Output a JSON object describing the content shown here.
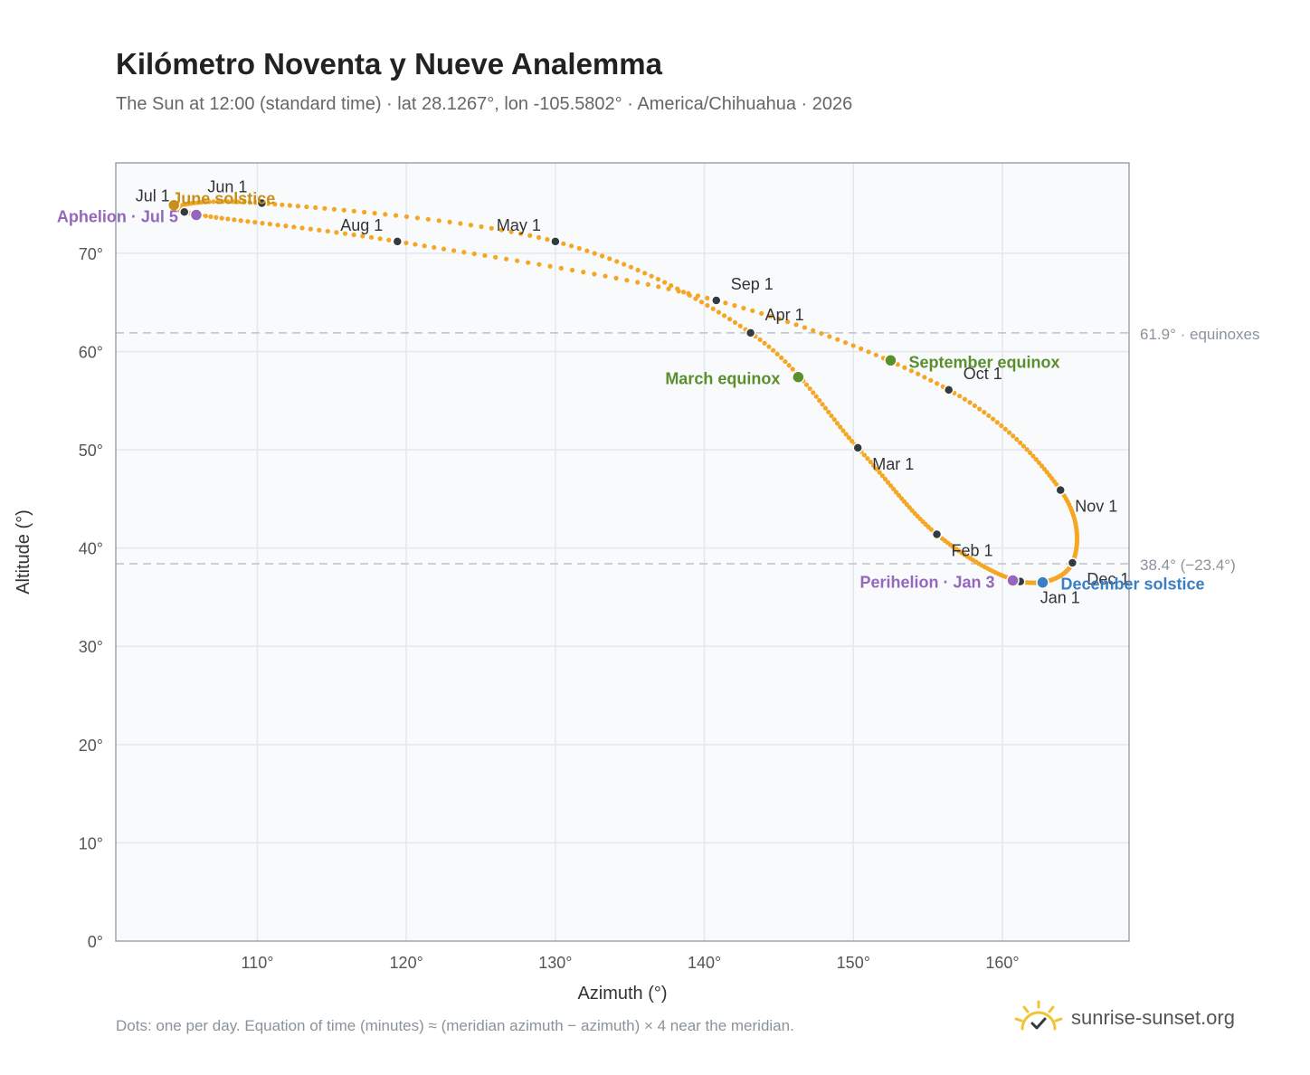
{
  "header": {
    "title": "Kilómetro Noventa y Nueve Analemma",
    "subtitle": "The Sun at 12:00 (standard time) · lat 28.1267°, lon -105.5802° · America/Chihuahua · 2026"
  },
  "footer": {
    "note": "Dots: one per day. Equation of time (minutes) ≈ (meridian azimuth − azimuth) × 4 near the meridian.",
    "brand": "sunrise-sunset.org"
  },
  "colors": {
    "path": "#f5a623",
    "month_dot": "#333a40",
    "equinox": "#5a8f2e",
    "june_solstice": "#c8901a",
    "december_solstice": "#3a7fc1",
    "apsis": "#9467bd",
    "brand_sun": "#f2c230",
    "plot_bg": "#f8fafc",
    "grid": "#e3e8ef",
    "frame": "#9aa5b4",
    "ref_line": "#b9c2cd"
  },
  "icons": {
    "brand": "sun-check-icon"
  },
  "chart_data": {
    "type": "scatter",
    "xlabel": "Azimuth (°)",
    "ylabel": "Altitude (°)",
    "xlim": [
      100.5,
      168.5
    ],
    "ylim": [
      0,
      79.2
    ],
    "x_ticks": [
      110,
      120,
      130,
      140,
      150,
      160
    ],
    "x_tick_labels": [
      "110°",
      "120°",
      "130°",
      "140°",
      "150°",
      "160°"
    ],
    "y_ticks": [
      0,
      10,
      20,
      30,
      40,
      50,
      60,
      70
    ],
    "y_tick_labels": [
      "0°",
      "10°",
      "20°",
      "30°",
      "40°",
      "50°",
      "60°",
      "70°"
    ],
    "grid": true,
    "reference_lines": [
      {
        "y": 61.9,
        "label": "61.9° · equinoxes"
      },
      {
        "y": 38.4,
        "label": "38.4° (−23.4°)"
      }
    ],
    "month_markers": [
      {
        "label": "Jan 1",
        "az": 161.2,
        "alt": 36.6
      },
      {
        "label": "Feb 1",
        "az": 155.6,
        "alt": 41.4
      },
      {
        "label": "Mar 1",
        "az": 150.3,
        "alt": 50.2
      },
      {
        "label": "Apr 1",
        "az": 143.1,
        "alt": 61.9
      },
      {
        "label": "May 1",
        "az": 130.0,
        "alt": 71.2
      },
      {
        "label": "Jun 1",
        "az": 110.3,
        "alt": 75.1
      },
      {
        "label": "Jul 1",
        "az": 105.1,
        "alt": 74.2
      },
      {
        "label": "Aug 1",
        "az": 119.4,
        "alt": 71.2
      },
      {
        "label": "Sep 1",
        "az": 140.8,
        "alt": 65.2
      },
      {
        "label": "Oct 1",
        "az": 156.4,
        "alt": 56.1
      },
      {
        "label": "Nov 1",
        "az": 163.9,
        "alt": 45.9
      },
      {
        "label": "Dec 1",
        "az": 164.7,
        "alt": 38.5
      }
    ],
    "events": [
      {
        "label": "March equinox",
        "az": 146.3,
        "alt": 57.4,
        "kind": "equinox"
      },
      {
        "label": "September equinox",
        "az": 152.5,
        "alt": 59.1,
        "kind": "equinox"
      },
      {
        "label": "June solstice",
        "az": 104.4,
        "alt": 74.9,
        "kind": "june_solstice"
      },
      {
        "label": "December solstice",
        "az": 162.7,
        "alt": 36.5,
        "kind": "december_solstice"
      },
      {
        "label": "Perihelion · Jan 3",
        "az": 160.7,
        "alt": 36.7,
        "kind": "apsis"
      },
      {
        "label": "Aphelion · Jul 5",
        "az": 105.9,
        "alt": 73.9,
        "kind": "apsis"
      }
    ]
  }
}
